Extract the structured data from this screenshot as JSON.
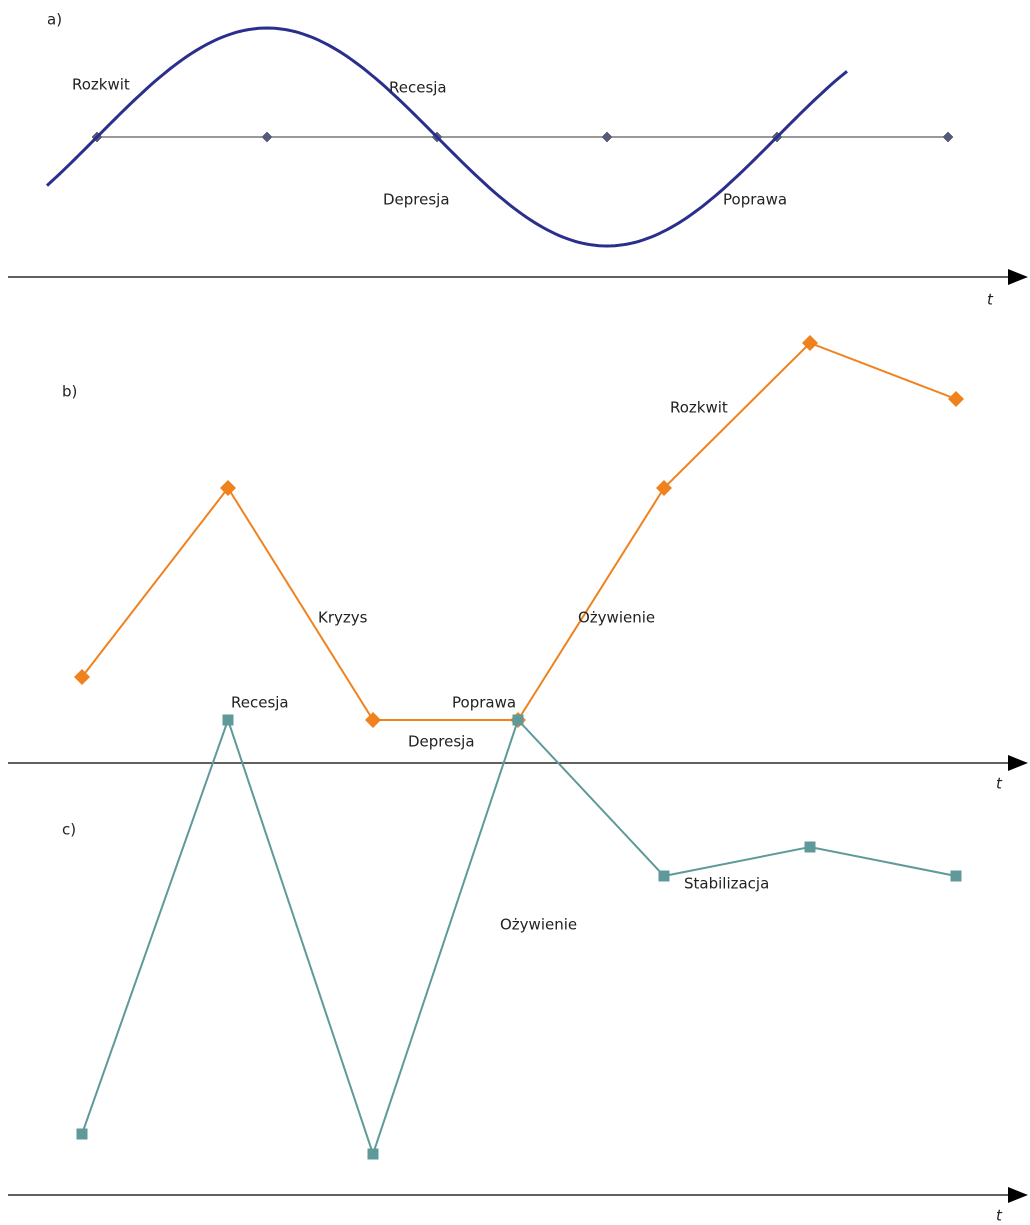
{
  "panels": [
    {
      "label": "a)",
      "axis_label": "t",
      "phases": [
        "Rozkwit",
        "Recesja",
        "Depresja",
        "Poprawa"
      ]
    },
    {
      "label": "b)",
      "axis_label": "t",
      "phases": [
        "Kryzys",
        "Depresja",
        "Ożywienie",
        "Rozkwit"
      ]
    },
    {
      "label": "c)",
      "axis_label": "t",
      "phases": [
        "Recesja",
        "Poprawa",
        "Ożywienie",
        "Stabilizacja"
      ]
    }
  ]
}
